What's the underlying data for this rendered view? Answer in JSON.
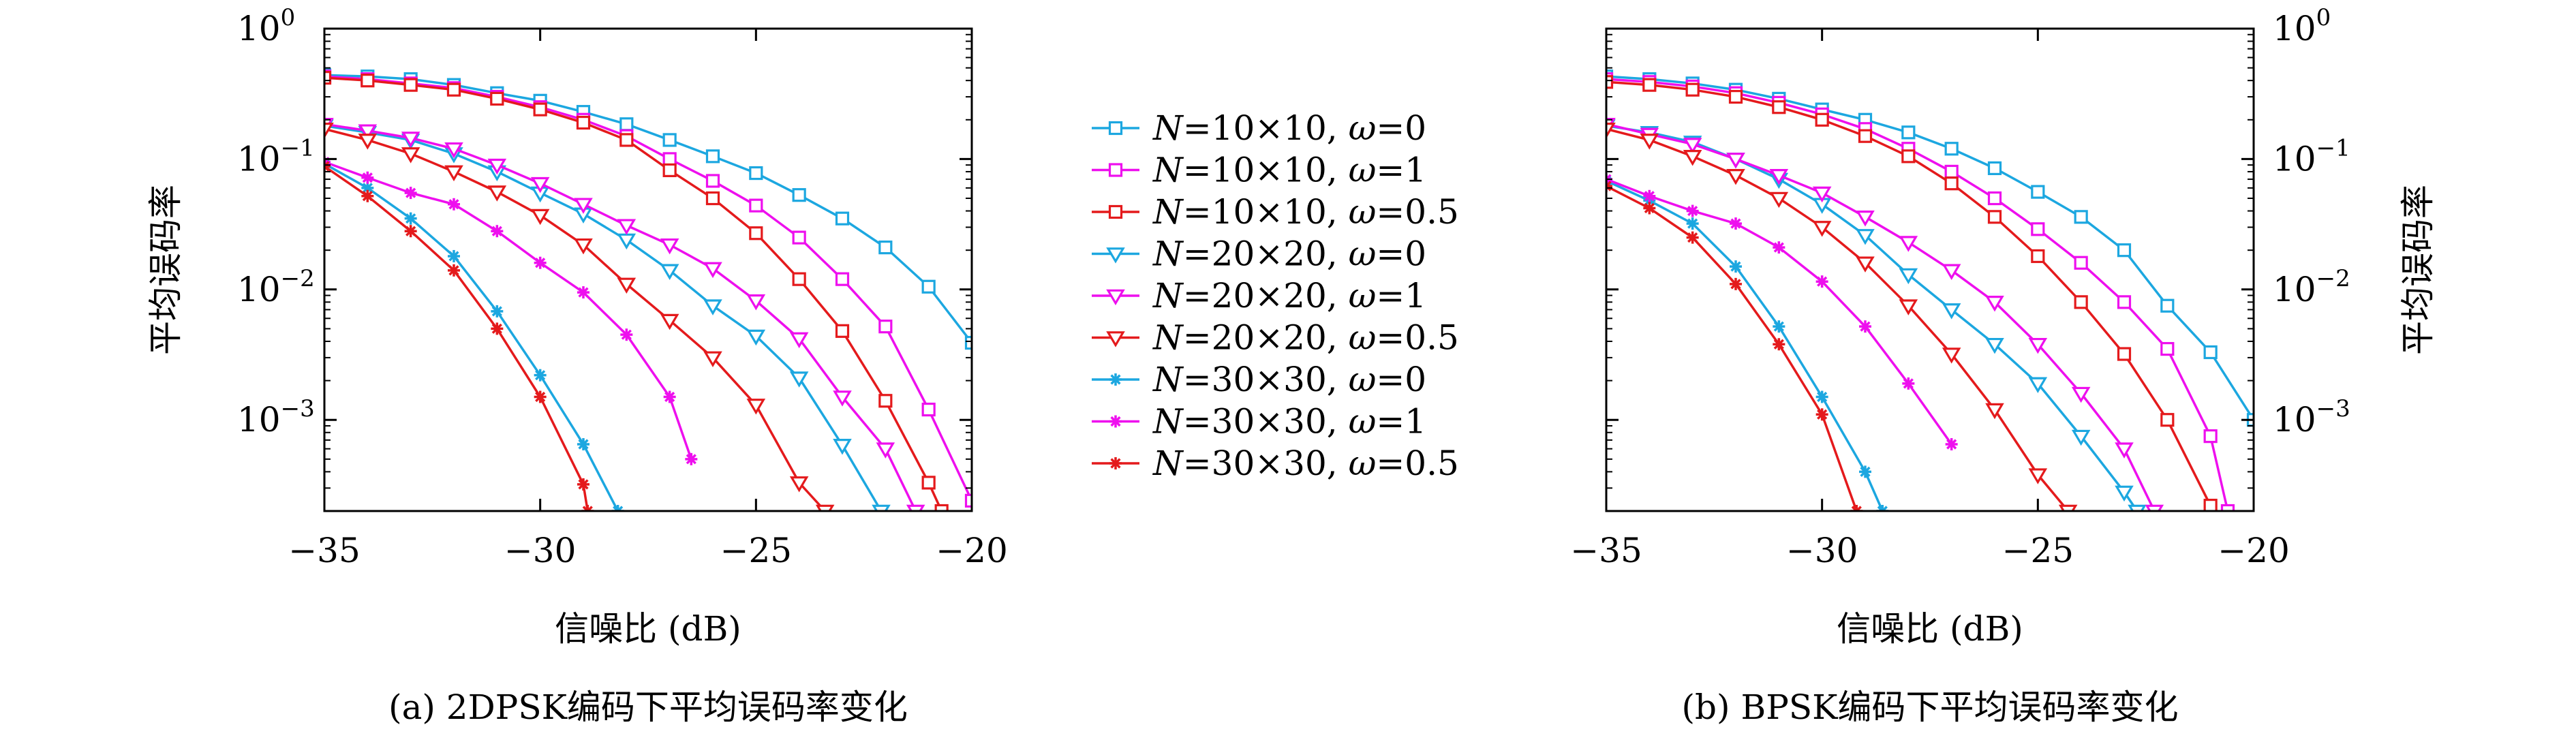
{
  "colors": {
    "cyan": "#1ca7e0",
    "magenta": "#ee0fee",
    "red": "#e41a1c",
    "axis": "#000000"
  },
  "legend": {
    "entries": [
      {
        "N": "N",
        "rest": "=10×10, ",
        "w": "ω",
        "val": "=0",
        "color": "#1ca7e0",
        "marker": "square"
      },
      {
        "N": "N",
        "rest": "=10×10, ",
        "w": "ω",
        "val": "=1",
        "color": "#ee0fee",
        "marker": "square"
      },
      {
        "N": "N",
        "rest": "=10×10, ",
        "w": "ω",
        "val": "=0.5",
        "color": "#e41a1c",
        "marker": "square"
      },
      {
        "N": "N",
        "rest": "=20×20, ",
        "w": "ω",
        "val": "=0",
        "color": "#1ca7e0",
        "marker": "triangle-down"
      },
      {
        "N": "N",
        "rest": "=20×20, ",
        "w": "ω",
        "val": "=1",
        "color": "#ee0fee",
        "marker": "triangle-down"
      },
      {
        "N": "N",
        "rest": "=20×20, ",
        "w": "ω",
        "val": "=0.5",
        "color": "#e41a1c",
        "marker": "triangle-down"
      },
      {
        "N": "N",
        "rest": "=30×30, ",
        "w": "ω",
        "val": "=0",
        "color": "#1ca7e0",
        "marker": "star"
      },
      {
        "N": "N",
        "rest": "=30×30, ",
        "w": "ω",
        "val": "=1",
        "color": "#ee0fee",
        "marker": "star"
      },
      {
        "N": "N",
        "rest": "=30×30, ",
        "w": "ω",
        "val": "=0.5",
        "color": "#e41a1c",
        "marker": "star"
      }
    ]
  },
  "chart_data": [
    {
      "type": "line",
      "caption": "(a) 2DPSK编码下平均误码率变化",
      "xlabel": "信噪比 (dB)",
      "ylabel": "平均误码率",
      "y_scale": "log",
      "ylabel_side": "left",
      "xlim": [
        -35,
        -20
      ],
      "ylim": [
        0.0002,
        1
      ],
      "xticks": [
        -35,
        -30,
        -25,
        -20
      ],
      "xtick_labels": [
        "−35",
        "−30",
        "−25",
        "−20"
      ],
      "yticks": [
        1,
        0.1,
        0.01,
        0.001
      ],
      "ytick_labels": [
        {
          "base": "10",
          "exp": "0"
        },
        {
          "base": "10",
          "exp": "−1"
        },
        {
          "base": "10",
          "exp": "−2"
        },
        {
          "base": "10",
          "exp": "−3"
        }
      ],
      "grid": false,
      "series": [
        {
          "name": "N=10×10, ω=0",
          "color": "#1ca7e0",
          "marker": "square",
          "x": [
            -35,
            -34,
            -33,
            -32,
            -31,
            -30,
            -29,
            -28,
            -27,
            -26,
            -25,
            -24,
            -23,
            -22,
            -21,
            -20
          ],
          "y": [
            0.44,
            0.43,
            0.41,
            0.37,
            0.32,
            0.28,
            0.23,
            0.185,
            0.14,
            0.105,
            0.078,
            0.053,
            0.035,
            0.021,
            0.0105,
            0.0039
          ]
        },
        {
          "name": "N=10×10, ω=1",
          "color": "#ee0fee",
          "marker": "square",
          "x": [
            -35,
            -34,
            -33,
            -32,
            -31,
            -30,
            -29,
            -28,
            -27,
            -26,
            -25,
            -24,
            -23,
            -22,
            -21,
            -20
          ],
          "y": [
            0.43,
            0.41,
            0.38,
            0.35,
            0.3,
            0.25,
            0.2,
            0.15,
            0.1,
            0.068,
            0.044,
            0.025,
            0.012,
            0.0052,
            0.0012,
            0.00024
          ]
        },
        {
          "name": "N=10×10, ω=0.5",
          "color": "#e41a1c",
          "marker": "square",
          "x": [
            -35,
            -34,
            -33,
            -32,
            -31,
            -30,
            -29,
            -28,
            -27,
            -26,
            -25,
            -24,
            -23,
            -22,
            -21,
            -20.7
          ],
          "y": [
            0.42,
            0.4,
            0.37,
            0.34,
            0.29,
            0.24,
            0.19,
            0.14,
            0.082,
            0.05,
            0.027,
            0.012,
            0.0048,
            0.0014,
            0.00033,
            0.0002
          ]
        },
        {
          "name": "N=20×20, ω=0",
          "color": "#1ca7e0",
          "marker": "triangle-down",
          "x": [
            -35,
            -34,
            -33,
            -32,
            -31,
            -30,
            -29,
            -28,
            -27,
            -26,
            -25,
            -24,
            -23,
            -22.1
          ],
          "y": [
            0.18,
            0.16,
            0.14,
            0.11,
            0.08,
            0.055,
            0.038,
            0.024,
            0.014,
            0.0075,
            0.0044,
            0.0021,
            0.00064,
            0.0002
          ]
        },
        {
          "name": "N=20×20, ω=1",
          "color": "#ee0fee",
          "marker": "triangle-down",
          "x": [
            -35,
            -34,
            -33,
            -32,
            -31,
            -30,
            -29,
            -28,
            -27,
            -26,
            -25,
            -24,
            -23,
            -22,
            -21.3
          ],
          "y": [
            0.185,
            0.165,
            0.145,
            0.12,
            0.09,
            0.065,
            0.045,
            0.031,
            0.022,
            0.0145,
            0.0082,
            0.0042,
            0.0015,
            0.0006,
            0.0002
          ]
        },
        {
          "name": "N=20×20, ω=0.5",
          "color": "#e41a1c",
          "marker": "triangle-down",
          "x": [
            -35,
            -34,
            -33,
            -32,
            -31,
            -30,
            -29,
            -28,
            -27,
            -26,
            -25,
            -24,
            -23.4
          ],
          "y": [
            0.17,
            0.14,
            0.11,
            0.08,
            0.056,
            0.037,
            0.022,
            0.011,
            0.0058,
            0.003,
            0.0013,
            0.00033,
            0.0002
          ]
        },
        {
          "name": "N=30×30, ω=0",
          "color": "#1ca7e0",
          "marker": "star",
          "x": [
            -35,
            -34,
            -33,
            -32,
            -31,
            -30,
            -29,
            -28.2
          ],
          "y": [
            0.092,
            0.06,
            0.035,
            0.018,
            0.0068,
            0.0022,
            0.00065,
            0.0002
          ]
        },
        {
          "name": "N=30×30, ω=1",
          "color": "#ee0fee",
          "marker": "star",
          "x": [
            -35,
            -34,
            -33,
            -32,
            -31,
            -30,
            -29,
            -28,
            -27,
            -26.5
          ],
          "y": [
            0.095,
            0.072,
            0.055,
            0.045,
            0.028,
            0.016,
            0.0095,
            0.0045,
            0.0015,
            0.0005
          ]
        },
        {
          "name": "N=30×30, ω=0.5",
          "color": "#e41a1c",
          "marker": "star",
          "x": [
            -35,
            -34,
            -33,
            -32,
            -31,
            -30,
            -29,
            -28.9
          ],
          "y": [
            0.088,
            0.052,
            0.028,
            0.014,
            0.005,
            0.0015,
            0.00032,
            0.0002
          ]
        }
      ]
    },
    {
      "type": "line",
      "caption": "(b) BPSK编码下平均误码率变化",
      "xlabel": "信噪比 (dB)",
      "ylabel": "平均误码率",
      "y_scale": "log",
      "ylabel_side": "right",
      "xlim": [
        -35,
        -20
      ],
      "ylim": [
        0.0002,
        1
      ],
      "xticks": [
        -35,
        -30,
        -25,
        -20
      ],
      "xtick_labels": [
        "−35",
        "−30",
        "−25",
        "−20"
      ],
      "yticks": [
        1,
        0.1,
        0.01,
        0.001
      ],
      "ytick_labels": [
        {
          "base": "10",
          "exp": "0"
        },
        {
          "base": "10",
          "exp": "−1"
        },
        {
          "base": "10",
          "exp": "−2"
        },
        {
          "base": "10",
          "exp": "−3"
        }
      ],
      "grid": false,
      "series": [
        {
          "name": "N=10×10, ω=0",
          "color": "#1ca7e0",
          "marker": "square",
          "x": [
            -35,
            -34,
            -33,
            -32,
            -31,
            -30,
            -29,
            -28,
            -27,
            -26,
            -25,
            -24,
            -23,
            -22,
            -21,
            -20
          ],
          "y": [
            0.43,
            0.41,
            0.38,
            0.34,
            0.29,
            0.24,
            0.2,
            0.16,
            0.12,
            0.085,
            0.056,
            0.036,
            0.02,
            0.0075,
            0.0033,
            0.001
          ]
        },
        {
          "name": "N=10×10, ω=1",
          "color": "#ee0fee",
          "marker": "square",
          "x": [
            -35,
            -34,
            -33,
            -32,
            -31,
            -30,
            -29,
            -28,
            -27,
            -26,
            -25,
            -24,
            -23,
            -22,
            -21,
            -20.6
          ],
          "y": [
            0.41,
            0.39,
            0.36,
            0.32,
            0.27,
            0.22,
            0.17,
            0.12,
            0.08,
            0.05,
            0.029,
            0.016,
            0.008,
            0.0035,
            0.00075,
            0.0002
          ]
        },
        {
          "name": "N=10×10, ω=0.5",
          "color": "#e41a1c",
          "marker": "square",
          "x": [
            -35,
            -34,
            -33,
            -32,
            -31,
            -30,
            -29,
            -28,
            -27,
            -26,
            -25,
            -24,
            -23,
            -22,
            -21
          ],
          "y": [
            0.39,
            0.37,
            0.34,
            0.3,
            0.25,
            0.2,
            0.15,
            0.105,
            0.065,
            0.036,
            0.018,
            0.008,
            0.0032,
            0.001,
            0.00022
          ]
        },
        {
          "name": "N=20×20, ω=0",
          "color": "#1ca7e0",
          "marker": "triangle-down",
          "x": [
            -35,
            -34,
            -33,
            -32,
            -31,
            -30,
            -29,
            -28,
            -27,
            -26,
            -25,
            -24,
            -23,
            -22.7
          ],
          "y": [
            0.18,
            0.16,
            0.135,
            0.1,
            0.07,
            0.045,
            0.026,
            0.013,
            0.007,
            0.0038,
            0.0019,
            0.00075,
            0.00028,
            0.0002
          ]
        },
        {
          "name": "N=20×20, ω=1",
          "color": "#ee0fee",
          "marker": "triangle-down",
          "x": [
            -35,
            -34,
            -33,
            -32,
            -31,
            -30,
            -29,
            -28,
            -27,
            -26,
            -25,
            -24,
            -23,
            -22.3
          ],
          "y": [
            0.185,
            0.155,
            0.13,
            0.1,
            0.075,
            0.055,
            0.036,
            0.023,
            0.014,
            0.008,
            0.0038,
            0.0016,
            0.0006,
            0.0002
          ]
        },
        {
          "name": "N=20×20, ω=0.5",
          "color": "#e41a1c",
          "marker": "triangle-down",
          "x": [
            -35,
            -34,
            -33,
            -32,
            -31,
            -30,
            -29,
            -28,
            -27,
            -26,
            -25,
            -24.3
          ],
          "y": [
            0.17,
            0.14,
            0.105,
            0.075,
            0.05,
            0.03,
            0.016,
            0.0075,
            0.0032,
            0.0012,
            0.00038,
            0.0002
          ]
        },
        {
          "name": "N=30×30, ω=0",
          "color": "#1ca7e0",
          "marker": "star",
          "x": [
            -35,
            -34,
            -33,
            -32,
            -31,
            -30,
            -29,
            -28.6
          ],
          "y": [
            0.068,
            0.048,
            0.032,
            0.015,
            0.0052,
            0.0015,
            0.0004,
            0.0002
          ]
        },
        {
          "name": "N=30×30, ω=1",
          "color": "#ee0fee",
          "marker": "star",
          "x": [
            -35,
            -34,
            -33,
            -32,
            -31,
            -30,
            -29,
            -28,
            -27
          ],
          "y": [
            0.07,
            0.052,
            0.04,
            0.032,
            0.021,
            0.0115,
            0.0052,
            0.0019,
            0.00065
          ]
        },
        {
          "name": "N=30×30, ω=0.5",
          "color": "#e41a1c",
          "marker": "star",
          "x": [
            -35,
            -34,
            -33,
            -32,
            -31,
            -30,
            -29.2
          ],
          "y": [
            0.062,
            0.042,
            0.025,
            0.011,
            0.0038,
            0.0011,
            0.0002
          ]
        }
      ]
    }
  ]
}
